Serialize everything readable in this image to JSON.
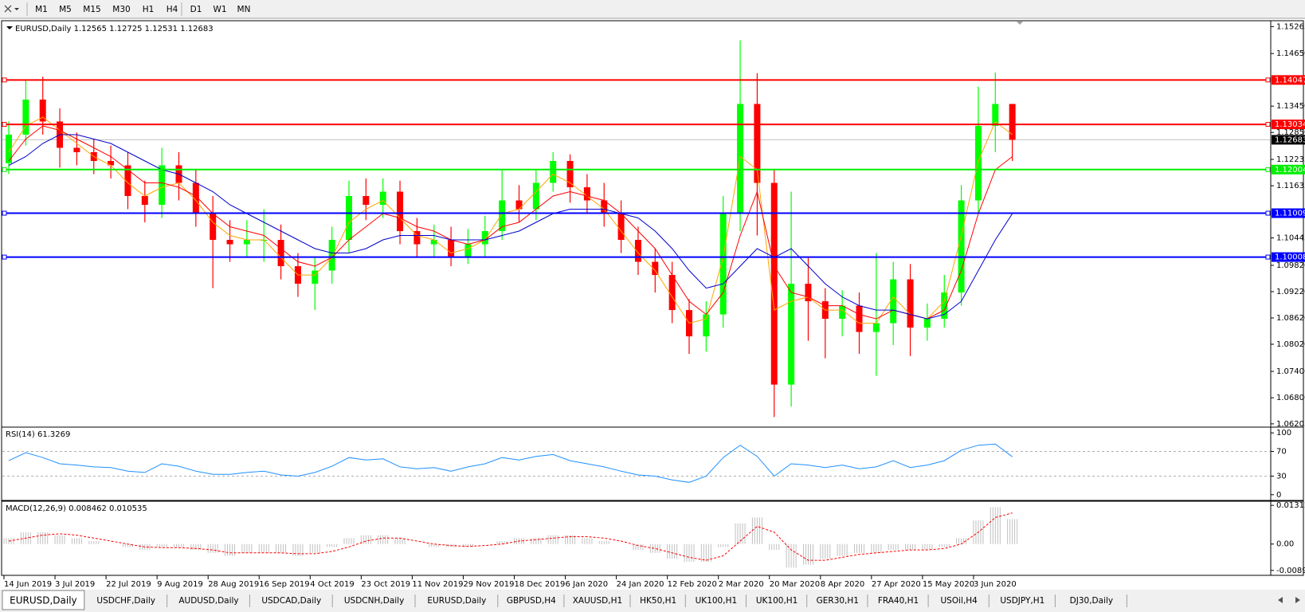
{
  "toolbar": {
    "timeframes": [
      "M1",
      "M5",
      "M15",
      "M30",
      "H1",
      "H4",
      "D1",
      "W1",
      "MN"
    ]
  },
  "tabs": [
    "EURUSD,Daily",
    "USDCHF,Daily",
    "AUDUSD,Daily",
    "USDCAD,Daily",
    "USDCNH,Daily",
    "EURUSD,Daily",
    "GBPUSD,H4",
    "XAUUSD,H1",
    "HK50,H1",
    "UK100,H1",
    "UK100,H1",
    "GER30,H1",
    "FRA40,H1",
    "USOil,H4",
    "USDJPY,H1",
    "DJ30,Daily"
  ],
  "chart_data": [
    {
      "type": "candlestick",
      "title": "EURUSD,Daily  1.12565 1.12725 1.12531 1.12683",
      "categories": [
        "14 Jun 2019",
        null,
        null,
        "3 Jul 2019",
        null,
        null,
        "22 Jul 2019",
        null,
        null,
        "9 Aug 2019",
        null,
        null,
        "28 Aug 2019",
        null,
        null,
        "16 Sep 2019",
        null,
        null,
        "4 Oct 2019",
        null,
        null,
        "23 Oct 2019",
        null,
        null,
        "11 Nov 2019",
        null,
        null,
        "29 Nov 2019",
        null,
        null,
        "18 Dec 2019",
        null,
        null,
        "6 Jan 2020",
        null,
        null,
        "24 Jan 2020",
        null,
        null,
        "12 Feb 2020",
        null,
        null,
        "2 Mar 2020",
        null,
        null,
        "20 Mar 2020",
        null,
        null,
        "8 Apr 2020",
        null,
        null,
        "27 Apr 2020",
        null,
        null,
        "15 May 2020",
        null,
        null,
        "3 Jun 2020",
        null,
        null
      ],
      "open": [
        1.1215,
        1.128,
        1.136,
        1.131,
        1.125,
        1.124,
        1.122,
        1.121,
        1.114,
        1.112,
        1.121,
        1.117,
        1.11,
        1.104,
        1.103,
        1.104,
        1.104,
        1.098,
        1.094,
        1.097,
        1.104,
        1.114,
        1.112,
        1.115,
        1.106,
        1.103,
        1.104,
        1.1,
        1.103,
        1.106,
        1.113,
        1.111,
        1.117,
        1.122,
        1.116,
        1.113,
        1.11,
        1.104,
        1.099,
        1.096,
        1.088,
        1.082,
        1.087,
        1.11,
        1.135,
        1.117,
        1.071,
        1.094,
        1.09,
        1.086,
        1.089,
        1.083,
        1.085,
        1.095,
        1.084,
        1.086,
        1.092,
        1.113,
        1.13,
        1.135
      ],
      "high": [
        1.131,
        1.1405,
        1.1412,
        1.134,
        1.1285,
        1.127,
        1.1255,
        1.124,
        1.1175,
        1.125,
        1.124,
        1.12,
        1.114,
        1.1085,
        1.1085,
        1.111,
        1.1075,
        1.101,
        1.1,
        1.107,
        1.1175,
        1.118,
        1.118,
        1.1175,
        1.109,
        1.1075,
        1.107,
        1.1065,
        1.1095,
        1.12,
        1.1165,
        1.12,
        1.124,
        1.1235,
        1.119,
        1.117,
        1.113,
        1.107,
        1.102,
        1.099,
        1.0905,
        1.09,
        1.114,
        1.1495,
        1.142,
        1.12,
        1.115,
        1.1,
        1.093,
        1.0925,
        1.092,
        1.101,
        1.099,
        1.0985,
        1.0895,
        1.096,
        1.1165,
        1.139,
        1.1422,
        1.135
      ],
      "low": [
        1.119,
        1.1255,
        1.128,
        1.1205,
        1.121,
        1.119,
        1.118,
        1.111,
        1.108,
        1.109,
        1.113,
        1.107,
        1.093,
        1.099,
        1.1,
        1.099,
        1.095,
        1.091,
        1.088,
        1.094,
        1.101,
        1.1085,
        1.109,
        1.103,
        1.1,
        1.1,
        1.098,
        1.0985,
        1.1,
        1.104,
        1.108,
        1.1085,
        1.115,
        1.1125,
        1.11,
        1.107,
        1.101,
        1.096,
        1.092,
        1.085,
        1.078,
        1.0785,
        1.084,
        1.106,
        1.105,
        1.0636,
        1.066,
        1.081,
        1.077,
        1.082,
        1.078,
        1.073,
        1.08,
        1.0775,
        1.081,
        1.084,
        1.089,
        1.11,
        1.124,
        1.122
      ],
      "close": [
        1.128,
        1.136,
        1.131,
        1.125,
        1.124,
        1.122,
        1.121,
        1.114,
        1.112,
        1.121,
        1.117,
        1.11,
        1.104,
        1.103,
        1.104,
        1.104,
        1.098,
        1.094,
        1.097,
        1.104,
        1.114,
        1.112,
        1.115,
        1.106,
        1.103,
        1.104,
        1.1,
        1.103,
        1.106,
        1.113,
        1.111,
        1.117,
        1.122,
        1.116,
        1.113,
        1.11,
        1.104,
        1.099,
        1.096,
        1.088,
        1.082,
        1.087,
        1.11,
        1.135,
        1.117,
        1.071,
        1.094,
        1.09,
        1.086,
        1.089,
        1.083,
        1.085,
        1.095,
        1.084,
        1.086,
        1.092,
        1.113,
        1.13,
        1.135,
        1.12683
      ],
      "up_color": "#00ff00",
      "down_color": "#ff0000",
      "series": [
        {
          "color": "#ffa500",
          "values": [
            1.124,
            1.13,
            1.132,
            1.129,
            1.126,
            1.123,
            1.121,
            1.117,
            1.114,
            1.116,
            1.117,
            1.113,
            1.108,
            1.105,
            1.104,
            1.104,
            1.1,
            1.096,
            1.096,
            1.1,
            1.108,
            1.111,
            1.113,
            1.109,
            1.105,
            1.104,
            1.101,
            1.102,
            1.104,
            1.11,
            1.111,
            1.115,
            1.119,
            1.117,
            1.114,
            1.111,
            1.106,
            1.101,
            1.097,
            1.091,
            1.085,
            1.086,
            1.1,
            1.123,
            1.12,
            1.088,
            1.09,
            1.091,
            1.088,
            1.088,
            1.085,
            1.085,
            1.091,
            1.087,
            1.086,
            1.09,
            1.105,
            1.122,
            1.131,
            1.128
          ]
        },
        {
          "color": "#ff0000",
          "values": [
            1.122,
            1.127,
            1.13,
            1.129,
            1.127,
            1.125,
            1.123,
            1.12,
            1.117,
            1.117,
            1.116,
            1.114,
            1.11,
            1.107,
            1.106,
            1.105,
            1.102,
            1.099,
            1.098,
            1.1,
            1.104,
            1.107,
            1.11,
            1.109,
            1.107,
            1.106,
            1.104,
            1.103,
            1.104,
            1.107,
            1.108,
            1.111,
            1.114,
            1.115,
            1.114,
            1.113,
            1.11,
            1.106,
            1.102,
            1.096,
            1.09,
            1.087,
            1.092,
            1.105,
            1.115,
            1.098,
            1.092,
            1.091,
            1.089,
            1.089,
            1.087,
            1.086,
            1.088,
            1.087,
            1.086,
            1.088,
            1.097,
            1.11,
            1.12,
            1.123
          ]
        },
        {
          "color": "#0000cd",
          "values": [
            1.121,
            1.123,
            1.126,
            1.128,
            1.128,
            1.127,
            1.126,
            1.124,
            1.122,
            1.12,
            1.119,
            1.117,
            1.115,
            1.112,
            1.11,
            1.108,
            1.106,
            1.104,
            1.102,
            1.101,
            1.101,
            1.102,
            1.104,
            1.105,
            1.105,
            1.105,
            1.104,
            1.104,
            1.104,
            1.105,
            1.106,
            1.108,
            1.11,
            1.111,
            1.111,
            1.111,
            1.11,
            1.109,
            1.106,
            1.102,
            1.097,
            1.093,
            1.094,
            1.098,
            1.102,
            1.1,
            1.102,
            1.098,
            1.094,
            1.091,
            1.089,
            1.088,
            1.088,
            1.087,
            1.086,
            1.087,
            1.09,
            1.097,
            1.104,
            1.11
          ]
        }
      ],
      "levels": [
        {
          "value": 1.14047,
          "color": "#ff0000"
        },
        {
          "value": 1.13034,
          "color": "#ff0000"
        },
        {
          "value": 1.12004,
          "color": "#00ee00"
        },
        {
          "value": 1.11009,
          "color": "#0000ff"
        },
        {
          "value": 1.10008,
          "color": "#0000ff"
        }
      ],
      "last": 1.12683,
      "ylim": [
        1.06148,
        1.1538
      ],
      "yticks": [
        1.15265,
        {
          "value": 1.1465,
          "label": "1.14650"
        },
        {
          "value": 1.1345,
          "label": "1.13450"
        },
        {
          "value": 1.1285,
          "label": "1.12850"
        },
        1.12235,
        1.11635,
        1.10445,
        {
          "value": 1.0982,
          "label": "1.09820"
        },
        {
          "value": 1.0922,
          "label": "1.09220"
        },
        {
          "value": 1.0862,
          "label": "1.08620"
        },
        {
          "value": 1.0802,
          "label": "1.08020"
        },
        {
          "value": 1.074,
          "label": "1.07400"
        },
        {
          "value": 1.068,
          "label": "1.06800"
        },
        1.06205
      ]
    },
    {
      "type": "line",
      "title": "RSI(14) 61.3269",
      "color": "#1e90ff",
      "values": [
        55,
        68,
        60,
        50,
        48,
        45,
        44,
        38,
        36,
        50,
        46,
        38,
        33,
        33,
        36,
        38,
        32,
        30,
        36,
        46,
        60,
        56,
        58,
        45,
        42,
        44,
        38,
        45,
        50,
        60,
        56,
        62,
        65,
        55,
        50,
        45,
        38,
        32,
        30,
        24,
        20,
        30,
        60,
        80,
        62,
        30,
        50,
        48,
        44,
        48,
        42,
        45,
        55,
        44,
        48,
        55,
        72,
        80,
        82,
        61.3269
      ],
      "ylim": [
        -8,
        108
      ],
      "yticks": [
        0,
        30,
        70,
        100
      ],
      "levels": [
        30,
        70
      ]
    },
    {
      "type": "macd",
      "title": "MACD(12,26,9) 0.008462 0.010535",
      "color": "#c0c0c0",
      "values": [
        0.002,
        0.004,
        0.004,
        0.003,
        0.002,
        0.001,
        0,
        -0.001,
        -0.002,
        -0.001,
        -0.001,
        -0.002,
        -0.003,
        -0.004,
        -0.003,
        -0.003,
        -0.003,
        -0.004,
        -0.003,
        -0.001,
        0.002,
        0.003,
        0.003,
        0.002,
        0,
        -0.001,
        -0.001,
        -0.001,
        0,
        0.001,
        0.002,
        0.002,
        0.003,
        0.003,
        0.002,
        0.001,
        0,
        -0.002,
        -0.003,
        -0.005,
        -0.006,
        -0.006,
        -0.001,
        0.007,
        0.009,
        -0.002,
        -0.008,
        -0.007,
        -0.005,
        -0.004,
        -0.003,
        -0.003,
        -0.002,
        -0.002,
        -0.002,
        -0.001,
        0.002,
        0.008,
        0.0125,
        0.008462
      ],
      "signal": {
        "color": "#ff0000",
        "values": [
          0.001,
          0.002,
          0.003,
          0.0035,
          0.003,
          0.002,
          0.001,
          0,
          -0.001,
          -0.0012,
          -0.0012,
          -0.0015,
          -0.002,
          -0.003,
          -0.003,
          -0.003,
          -0.003,
          -0.0033,
          -0.0033,
          -0.0025,
          -0.001,
          0.001,
          0.002,
          0.002,
          0.001,
          0,
          -0.0005,
          -0.0008,
          -0.0005,
          0,
          0.001,
          0.0015,
          0.002,
          0.0025,
          0.0025,
          0.002,
          0.001,
          -0.0005,
          -0.0015,
          -0.003,
          -0.0045,
          -0.0055,
          -0.004,
          0.001,
          0.006,
          0.004,
          -0.002,
          -0.0055,
          -0.0055,
          -0.0045,
          -0.0035,
          -0.003,
          -0.0025,
          -0.002,
          -0.002,
          -0.0015,
          0,
          0.004,
          0.009,
          0.010535
        ]
      },
      "ylim": [
        -0.01034,
        0.01425
      ],
      "yticks": [
        0.013121,
        {
          "value": 0,
          "label": "0.00"
        },
        -0.00893
      ]
    }
  ]
}
